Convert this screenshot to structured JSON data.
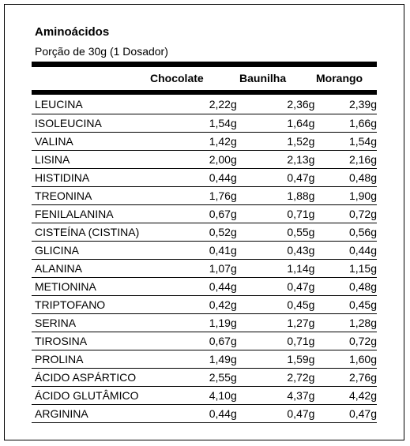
{
  "title": "Aminoácidos",
  "subtitle": "Porção de 30g (1 Dosador)",
  "columns": [
    "Chocolate",
    "Baunilha",
    "Morango"
  ],
  "rows": [
    {
      "name": "LEUCINA",
      "values": [
        "2,22g",
        "2,36g",
        "2,39g"
      ]
    },
    {
      "name": "ISOLEUCINA",
      "values": [
        "1,54g",
        "1,64g",
        "1,66g"
      ]
    },
    {
      "name": "VALINA",
      "values": [
        "1,42g",
        "1,52g",
        "1,54g"
      ]
    },
    {
      "name": "LISINA",
      "values": [
        "2,00g",
        "2,13g",
        "2,16g"
      ]
    },
    {
      "name": "HISTIDINA",
      "values": [
        "0,44g",
        "0,47g",
        "0,48g"
      ]
    },
    {
      "name": "TREONINA",
      "values": [
        "1,76g",
        "1,88g",
        "1,90g"
      ]
    },
    {
      "name": "FENILALANINA",
      "values": [
        "0,67g",
        "0,71g",
        "0,72g"
      ]
    },
    {
      "name": "CISTEÍNA (CISTINA)",
      "values": [
        "0,52g",
        "0,55g",
        "0,56g"
      ]
    },
    {
      "name": "GLICINA",
      "values": [
        "0,41g",
        "0,43g",
        "0,44g"
      ]
    },
    {
      "name": "ALANINA",
      "values": [
        "1,07g",
        "1,14g",
        "1,15g"
      ]
    },
    {
      "name": "METIONINA",
      "values": [
        "0,44g",
        "0,47g",
        "0,48g"
      ]
    },
    {
      "name": "TRIPTOFANO",
      "values": [
        "0,42g",
        "0,45g",
        "0,45g"
      ]
    },
    {
      "name": "SERINA",
      "values": [
        "1,19g",
        "1,27g",
        "1,28g"
      ]
    },
    {
      "name": "TIROSINA",
      "values": [
        "0,67g",
        "0,71g",
        "0,72g"
      ]
    },
    {
      "name": "PROLINA",
      "values": [
        "1,49g",
        "1,59g",
        "1,60g"
      ]
    },
    {
      "name": "ÁCIDO ASPÁRTICO",
      "values": [
        "2,55g",
        "2,72g",
        "2,76g"
      ]
    },
    {
      "name": "ÁCIDO GLUTÂMICO",
      "values": [
        "4,10g",
        "4,37g",
        "4,42g"
      ]
    },
    {
      "name": "ARGININA",
      "values": [
        "0,44g",
        "0,47g",
        "0,47g"
      ]
    }
  ]
}
